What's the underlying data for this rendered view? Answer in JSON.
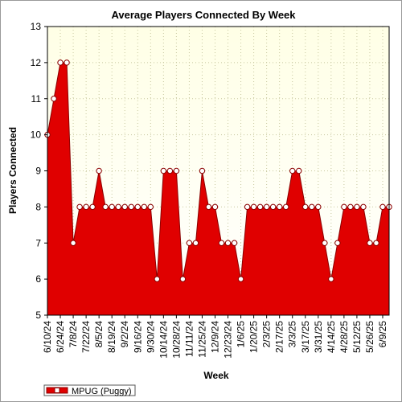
{
  "chart_data": {
    "type": "area",
    "title": "Average Players Connected By Week",
    "xlabel": "Week",
    "ylabel": "Players Connected",
    "ylim": [
      5,
      13
    ],
    "yticks": [
      5,
      6,
      7,
      8,
      9,
      10,
      11,
      12,
      13
    ],
    "grid": true,
    "legend_position": "bottom-left",
    "colors": {
      "fill": "#e00000",
      "outline": "#8b0000",
      "marker_fill": "#ffffff",
      "plot_bg_top": "#ffffe6",
      "plot_bg_bottom": "#ffffff",
      "grid": "#c8c8a0"
    },
    "x_tick_labels": [
      "6/10/24",
      "6/24/24",
      "7/8/24",
      "7/22/24",
      "8/5/24",
      "8/19/24",
      "9/2/24",
      "9/16/24",
      "9/30/24",
      "10/14/24",
      "10/28/24",
      "11/11/24",
      "11/25/24",
      "12/9/24",
      "12/23/24",
      "1/6/25",
      "1/20/25",
      "2/3/25",
      "2/17/25",
      "3/3/25",
      "3/17/25",
      "3/31/25",
      "4/14/25",
      "4/28/25",
      "5/12/25",
      "5/26/25",
      "6/9/25"
    ],
    "series": [
      {
        "name": "MPUG (Puggy)",
        "x": [
          "6/10/24",
          "6/17/24",
          "6/24/24",
          "7/1/24",
          "7/8/24",
          "7/15/24",
          "7/22/24",
          "7/29/24",
          "8/5/24",
          "8/12/24",
          "8/19/24",
          "8/26/24",
          "9/2/24",
          "9/9/24",
          "9/16/24",
          "9/23/24",
          "9/30/24",
          "10/7/24",
          "10/14/24",
          "10/21/24",
          "10/28/24",
          "11/4/24",
          "11/11/24",
          "11/18/24",
          "11/25/24",
          "12/2/24",
          "12/9/24",
          "12/16/24",
          "12/23/24",
          "12/30/24",
          "1/6/25",
          "1/13/25",
          "1/20/25",
          "1/27/25",
          "2/3/25",
          "2/10/25",
          "2/17/25",
          "2/24/25",
          "3/3/25",
          "3/10/25",
          "3/17/25",
          "3/24/25",
          "3/31/25",
          "4/7/25",
          "4/14/25",
          "4/21/25",
          "4/28/25",
          "5/5/25",
          "5/12/25",
          "5/19/25",
          "5/26/25",
          "6/2/25",
          "6/9/25",
          "6/16/25"
        ],
        "values": [
          10,
          11,
          12,
          12,
          7,
          8,
          8,
          8,
          9,
          8,
          8,
          8,
          8,
          8,
          8,
          8,
          8,
          6,
          9,
          9,
          9,
          6,
          7,
          7,
          9,
          8,
          8,
          7,
          7,
          7,
          6,
          8,
          8,
          8,
          8,
          8,
          8,
          8,
          9,
          9,
          8,
          8,
          8,
          7,
          6,
          7,
          8,
          8,
          8,
          8,
          7,
          7,
          8,
          8
        ]
      }
    ]
  }
}
